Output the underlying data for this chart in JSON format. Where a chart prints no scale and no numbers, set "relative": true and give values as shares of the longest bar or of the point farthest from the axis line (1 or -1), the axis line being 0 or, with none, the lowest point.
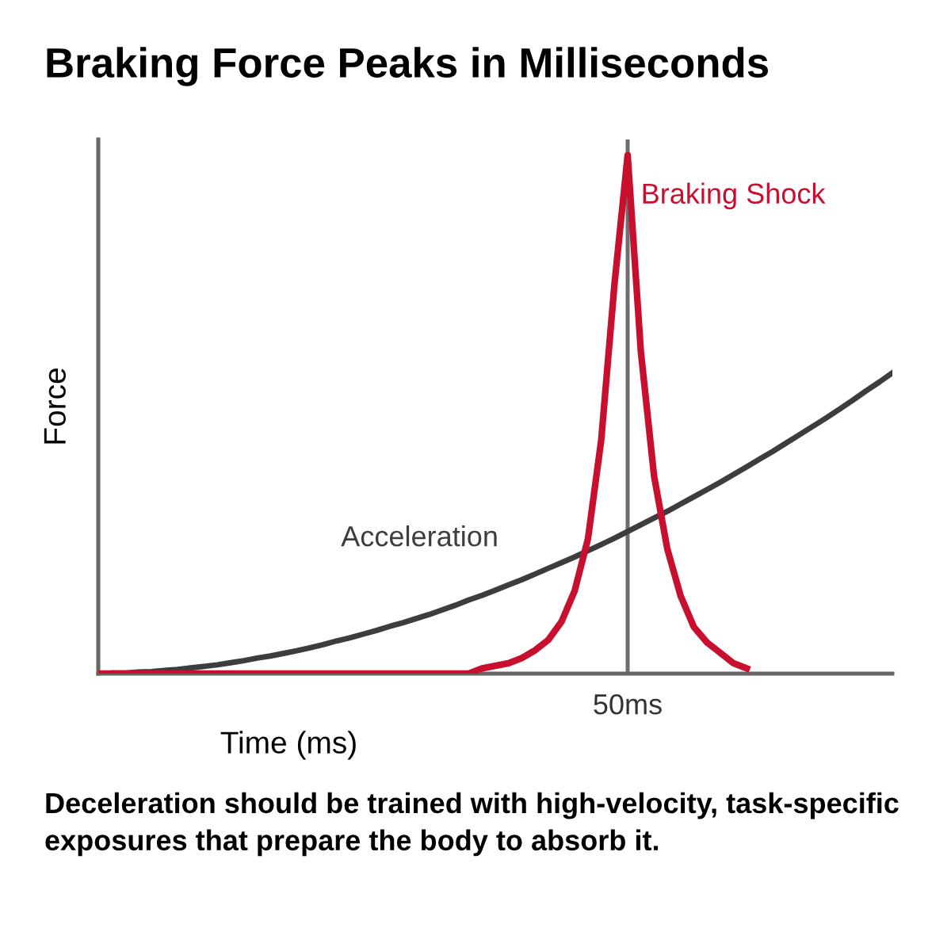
{
  "chart_data": {
    "type": "line",
    "title": "Braking Force Peaks in Milliseconds",
    "xlabel": "Time (ms)",
    "ylabel": "Force",
    "relative": true,
    "tick_labels": "x",
    "legend": false,
    "marker": "none",
    "line_style": "solid",
    "categories": [
      null,
      null,
      null,
      null,
      null,
      null,
      null,
      null,
      null,
      null,
      null,
      null,
      null,
      null,
      null,
      null,
      null,
      null,
      null,
      null,
      null,
      null,
      null,
      null,
      null,
      null,
      null,
      null,
      null,
      null,
      null,
      null,
      null,
      null,
      null,
      null,
      null,
      null,
      null,
      null,
      null,
      null,
      null,
      null,
      null,
      null,
      null,
      null,
      null,
      null,
      null,
      null,
      null,
      null,
      null,
      null,
      null,
      null,
      null,
      null,
      null
    ],
    "series": [
      {
        "name": "Acceleration",
        "color": "#3d3d3d",
        "values": [
          0,
          0.001,
          0.001,
          0.003,
          0.004,
          0.006,
          0.008,
          0.011,
          0.014,
          0.017,
          0.021,
          0.025,
          0.03,
          0.034,
          0.039,
          0.044,
          0.05,
          0.056,
          0.063,
          0.069,
          0.076,
          0.083,
          0.091,
          0.098,
          0.106,
          0.114,
          0.123,
          0.132,
          0.142,
          0.151,
          0.161,
          0.171,
          0.181,
          0.192,
          0.203,
          0.214,
          0.225,
          0.237,
          0.249,
          0.261,
          0.274,
          0.287,
          0.3,
          0.313,
          0.327,
          0.341,
          0.355,
          0.369,
          0.384,
          0.399,
          0.414,
          0.429,
          0.445,
          0.461,
          0.477,
          0.493,
          0.51,
          0.527,
          0.545,
          0.562,
          0.58
        ]
      },
      {
        "name": "Braking Shock",
        "color": "#c8102e",
        "values": [
          0,
          0,
          0,
          0,
          0,
          0,
          0,
          0,
          0,
          0,
          0,
          0,
          0,
          0,
          0,
          0,
          0,
          0,
          0,
          0,
          0,
          0,
          0,
          0,
          0,
          0,
          0,
          0,
          0,
          0.01,
          0.015,
          0.02,
          0.03,
          0.045,
          0.065,
          0.1,
          0.16,
          0.26,
          0.45,
          0.75,
          1,
          0.62,
          0.38,
          0.24,
          0.15,
          0.09,
          0.06,
          0.04,
          0.02,
          0.01,
          null,
          null,
          null,
          null,
          null,
          null,
          null,
          null,
          null,
          null,
          null
        ]
      }
    ],
    "annotations": [
      {
        "text": "50ms"
      },
      "Deceleration should be trained with high-velocity, task-specific exposures that prepare the body to absorb it."
    ]
  }
}
